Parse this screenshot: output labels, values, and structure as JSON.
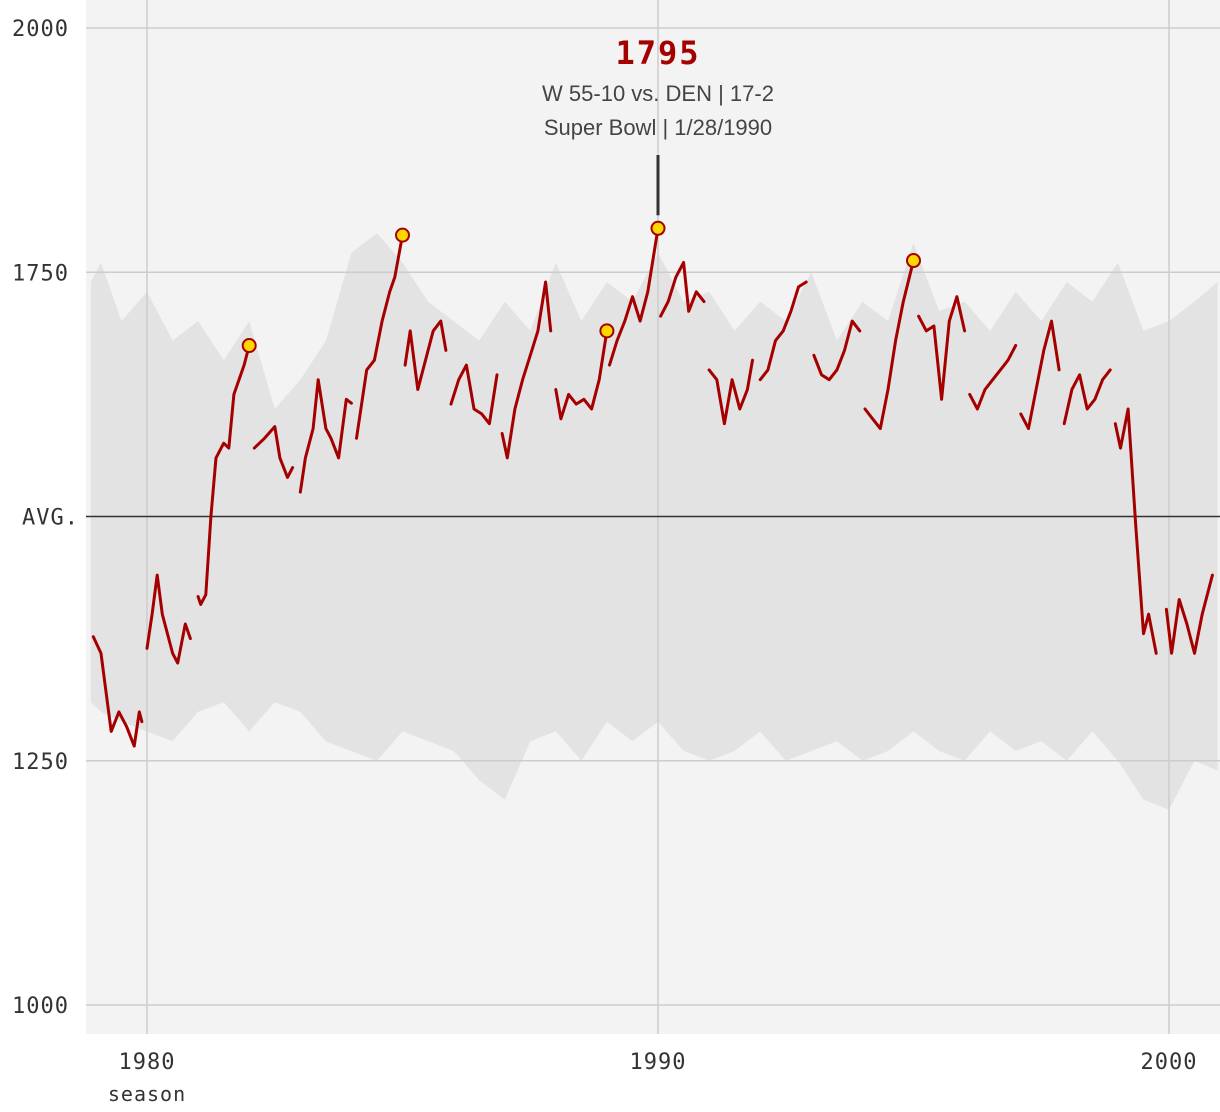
{
  "chart_data": {
    "type": "line",
    "title": "",
    "xlabel": "season",
    "ylabel": "",
    "xlim": [
      1978.8,
      2000.95
    ],
    "ylim": [
      970,
      2030
    ],
    "y_ticks": [
      1000,
      1250,
      1750,
      2000
    ],
    "y_tick_labels": [
      "1000",
      "1250",
      "1750",
      "2000"
    ],
    "average": {
      "value": 1500,
      "label": "AVG."
    },
    "x_ticks": [
      1980,
      1990,
      2000
    ],
    "x_tick_labels": [
      "1980",
      "1990",
      "2000"
    ],
    "grid": true,
    "colors": {
      "line": "#a50000",
      "marker_fill": "#ffd700",
      "band": "#e3e3e3",
      "plot_bg": "#f3f3f3",
      "grid": "#cccccc",
      "avg_line": "#333333"
    },
    "league_range": {
      "x": [
        1978.9,
        1979.1,
        1979.5,
        1980.0,
        1980.5,
        1981.0,
        1981.5,
        1982.0,
        1982.5,
        1983.0,
        1983.5,
        1984.0,
        1984.5,
        1985.0,
        1985.5,
        1986.0,
        1986.5,
        1987.0,
        1987.5,
        1988.0,
        1988.5,
        1989.0,
        1989.5,
        1990.0,
        1990.5,
        1991.0,
        1991.5,
        1992.0,
        1992.5,
        1993.0,
        1993.5,
        1994.0,
        1994.5,
        1995.0,
        1995.5,
        1996.0,
        1996.5,
        1997.0,
        1997.5,
        1998.0,
        1998.5,
        1999.0,
        1999.5,
        2000.0,
        2000.5,
        2000.95
      ],
      "high": [
        1740,
        1760,
        1700,
        1730,
        1680,
        1700,
        1660,
        1700,
        1610,
        1640,
        1680,
        1770,
        1790,
        1760,
        1720,
        1700,
        1680,
        1720,
        1690,
        1760,
        1700,
        1740,
        1720,
        1770,
        1720,
        1730,
        1690,
        1720,
        1700,
        1750,
        1680,
        1720,
        1700,
        1780,
        1710,
        1720,
        1690,
        1730,
        1700,
        1740,
        1720,
        1760,
        1690,
        1700,
        1720,
        1740
      ],
      "low": [
        1310,
        1300,
        1290,
        1280,
        1270,
        1300,
        1310,
        1280,
        1310,
        1300,
        1270,
        1260,
        1250,
        1280,
        1270,
        1260,
        1230,
        1210,
        1270,
        1280,
        1250,
        1290,
        1270,
        1290,
        1260,
        1250,
        1260,
        1280,
        1250,
        1260,
        1270,
        1250,
        1260,
        1280,
        1260,
        1250,
        1280,
        1260,
        1270,
        1250,
        1280,
        1250,
        1210,
        1200,
        1250,
        1240
      ]
    },
    "series": [
      {
        "x": [
          1978.95,
          1979.1,
          1979.2,
          1979.3,
          1979.45,
          1979.6,
          1979.75,
          1979.85,
          1979.9
        ],
        "y": [
          1377,
          1360,
          1320,
          1280,
          1300,
          1285,
          1265,
          1300,
          1290
        ]
      },
      {
        "x": [
          1980.0,
          1980.1,
          1980.2,
          1980.3,
          1980.5,
          1980.6,
          1980.75,
          1980.85
        ],
        "y": [
          1365,
          1400,
          1440,
          1400,
          1360,
          1350,
          1390,
          1375
        ]
      },
      {
        "x": [
          1981.0,
          1981.05,
          1981.15,
          1981.25,
          1981.35,
          1981.5,
          1981.6,
          1981.7,
          1981.8,
          1981.9,
          1982.0
        ],
        "y": [
          1418,
          1410,
          1420,
          1500,
          1560,
          1575,
          1570,
          1625,
          1640,
          1655,
          1675
        ]
      },
      {
        "x": [
          1982.1,
          1982.3,
          1982.5,
          1982.6,
          1982.75,
          1982.85
        ],
        "y": [
          1570,
          1580,
          1592,
          1560,
          1540,
          1550
        ]
      },
      {
        "x": [
          1983.0,
          1983.1,
          1983.25,
          1983.35,
          1983.5,
          1983.6,
          1983.75,
          1983.9,
          1984.0
        ],
        "y": [
          1525,
          1560,
          1590,
          1640,
          1590,
          1580,
          1560,
          1620,
          1616
        ]
      },
      {
        "x": [
          1984.1,
          1984.3,
          1984.45,
          1984.6,
          1984.75,
          1984.85,
          1985.0
        ],
        "y": [
          1580,
          1650,
          1660,
          1700,
          1730,
          1745,
          1788
        ]
      },
      {
        "x": [
          1985.05,
          1985.15,
          1985.3,
          1985.45,
          1985.6,
          1985.75,
          1985.85
        ],
        "y": [
          1655,
          1690,
          1630,
          1660,
          1690,
          1700,
          1670
        ]
      },
      {
        "x": [
          1985.95,
          1986.1,
          1986.25,
          1986.4,
          1986.55,
          1986.7,
          1986.85
        ],
        "y": [
          1615,
          1640,
          1655,
          1610,
          1605,
          1595,
          1645
        ]
      },
      {
        "x": [
          1986.95,
          1987.05,
          1987.2,
          1987.35,
          1987.5,
          1987.65,
          1987.8,
          1987.9
        ],
        "y": [
          1585,
          1560,
          1610,
          1640,
          1665,
          1690,
          1740,
          1690
        ]
      },
      {
        "x": [
          1988.0,
          1988.1,
          1988.25,
          1988.4,
          1988.55,
          1988.7,
          1988.85,
          1989.0
        ],
        "y": [
          1630,
          1600,
          1625,
          1615,
          1620,
          1610,
          1640,
          1690
        ]
      },
      {
        "x": [
          1989.05,
          1989.2,
          1989.35,
          1989.5,
          1989.65,
          1989.8,
          1990.0
        ],
        "y": [
          1655,
          1680,
          1700,
          1725,
          1700,
          1730,
          1795
        ]
      },
      {
        "x": [
          1990.05,
          1990.2,
          1990.35,
          1990.5,
          1990.6,
          1990.75,
          1990.9
        ],
        "y": [
          1705,
          1720,
          1745,
          1760,
          1710,
          1730,
          1720
        ]
      },
      {
        "x": [
          1991.0,
          1991.15,
          1991.3,
          1991.45,
          1991.6,
          1991.75,
          1991.85
        ],
        "y": [
          1650,
          1640,
          1595,
          1640,
          1610,
          1630,
          1660
        ]
      },
      {
        "x": [
          1992.0,
          1992.15,
          1992.3,
          1992.45,
          1992.6,
          1992.75,
          1992.9
        ],
        "y": [
          1640,
          1650,
          1680,
          1690,
          1710,
          1735,
          1740
        ]
      },
      {
        "x": [
          1993.05,
          1993.2,
          1993.35,
          1993.5,
          1993.65,
          1993.8,
          1993.95
        ],
        "y": [
          1665,
          1645,
          1640,
          1650,
          1670,
          1700,
          1690
        ]
      },
      {
        "x": [
          1994.05,
          1994.2,
          1994.35,
          1994.5,
          1994.65,
          1994.8,
          1995.0
        ],
        "y": [
          1610,
          1600,
          1590,
          1630,
          1680,
          1720,
          1762
        ]
      },
      {
        "x": [
          1995.1,
          1995.25,
          1995.4,
          1995.55,
          1995.7,
          1995.85,
          1996.0
        ],
        "y": [
          1705,
          1690,
          1695,
          1620,
          1700,
          1725,
          1690
        ]
      },
      {
        "x": [
          1996.1,
          1996.25,
          1996.4,
          1996.55,
          1996.7,
          1996.85,
          1997.0
        ],
        "y": [
          1625,
          1610,
          1630,
          1640,
          1650,
          1660,
          1675
        ]
      },
      {
        "x": [
          1997.1,
          1997.25,
          1997.4,
          1997.55,
          1997.7,
          1997.85
        ],
        "y": [
          1605,
          1590,
          1630,
          1670,
          1700,
          1650
        ]
      },
      {
        "x": [
          1997.95,
          1998.1,
          1998.25,
          1998.4,
          1998.55,
          1998.7,
          1998.85
        ],
        "y": [
          1595,
          1630,
          1645,
          1610,
          1620,
          1640,
          1650
        ]
      },
      {
        "x": [
          1998.95,
          1999.05,
          1999.2,
          1999.35,
          1999.5,
          1999.6,
          1999.75
        ],
        "y": [
          1595,
          1570,
          1610,
          1490,
          1380,
          1400,
          1360
        ]
      },
      {
        "x": [
          1999.95,
          2000.05,
          2000.2,
          2000.35,
          2000.5,
          2000.65,
          2000.85
        ],
        "y": [
          1405,
          1360,
          1415,
          1390,
          1360,
          1400,
          1440
        ]
      }
    ],
    "highlight_points": [
      {
        "x": 1982.0,
        "y": 1675
      },
      {
        "x": 1985.0,
        "y": 1788
      },
      {
        "x": 1989.0,
        "y": 1690
      },
      {
        "x": 1990.0,
        "y": 1795
      },
      {
        "x": 1995.0,
        "y": 1762
      }
    ],
    "annotation": {
      "x": 1990.0,
      "y": 1795,
      "value": "1795",
      "line1": "W 55-10 vs. DEN | 17-2",
      "line2": "Super Bowl | 1/28/1990"
    }
  }
}
